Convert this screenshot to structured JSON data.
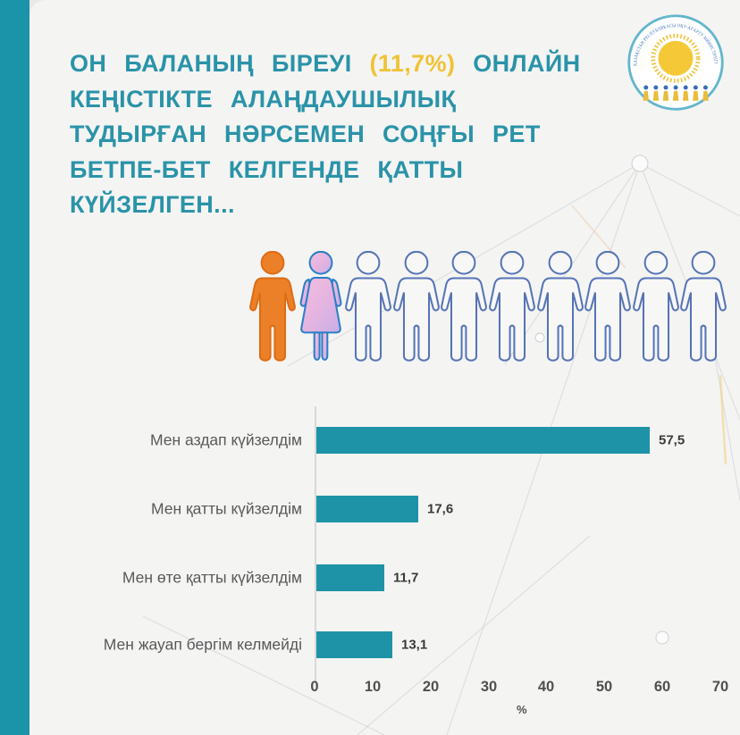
{
  "title": {
    "lines": [
      {
        "segments": [
          {
            "t": "ОН БАЛАНЫҢ БІРЕУІ ",
            "c": "teal"
          },
          {
            "t": "(11,7%)",
            "c": "yellow"
          },
          {
            "t": " ОНЛАЙН",
            "c": "teal"
          }
        ]
      },
      {
        "segments": [
          {
            "t": "КЕҢІСТІКТЕ АЛАҢДАУШЫЛЫҚ",
            "c": "teal"
          }
        ]
      },
      {
        "segments": [
          {
            "t": "ТУДЫРҒАН НӘРСЕМЕН СОҢҒЫ РЕТ",
            "c": "teal"
          }
        ]
      },
      {
        "segments": [
          {
            "t": "БЕТПЕ-БЕТ КЕЛГЕНДЕ ҚАТТЫ",
            "c": "teal"
          }
        ]
      },
      {
        "segments": [
          {
            "t": "КҮЙЗЕЛГЕН...",
            "c": "teal"
          }
        ]
      }
    ],
    "highlight_value": "11,7%"
  },
  "logo": {
    "arc_text": "ҚАЗАҚСТАН РЕСПУБЛИКАСЫ ОҚУ-АҒАРТУ МИНИСТРЛІГІ"
  },
  "pictograph": {
    "total_figures": 10,
    "highlighted_figures": 2,
    "figures": [
      "male-filled",
      "female-filled",
      "male-outline",
      "male-outline",
      "male-outline",
      "male-outline",
      "male-outline",
      "male-outline",
      "male-outline",
      "male-outline"
    ]
  },
  "chart_data": {
    "type": "bar",
    "orientation": "horizontal",
    "categories": [
      "Мен аздап күйзелдім",
      "Мен қатты күйзелдім",
      "Мен өте қатты күйзелдім",
      "Мен жауап бергім келмейді"
    ],
    "values": [
      57.5,
      17.6,
      11.7,
      13.1
    ],
    "value_labels": [
      "57,5",
      "17,6",
      "11,7",
      "13,1"
    ],
    "xticks": [
      0,
      10,
      20,
      30,
      40,
      50,
      60,
      70
    ],
    "xlim": [
      0,
      70
    ],
    "xlabel": "%",
    "grid": false,
    "legend": "none",
    "bar_color": "#1e93a7"
  },
  "colors": {
    "accent_teal_band": "#1b93a8",
    "title_teal": "#2a93a8",
    "highlight_yellow": "#f0c235",
    "bar_teal": "#1e93a7",
    "orange_figure": "#ec8028",
    "pink_figure_fill": "#e8b4de",
    "outline_figure_blue": "#5674b6",
    "category_label_gray": "#595959",
    "card_background": "#f4f4f3"
  }
}
